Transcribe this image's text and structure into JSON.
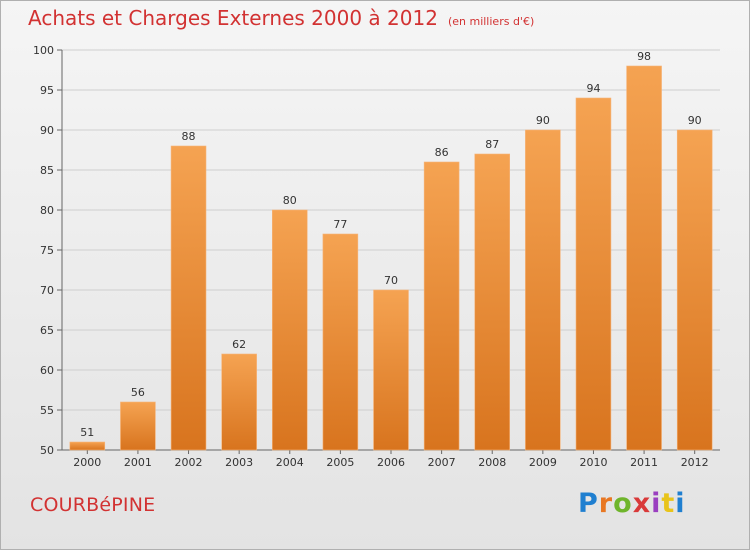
{
  "title": "Achats et Charges Externes 2000 à 2012",
  "subtitle": "(en milliers d'€)",
  "commune": "COURBéPINE",
  "logo": {
    "text": "Proxiti",
    "colors": [
      "#1f7fd0",
      "#e87722",
      "#6fb52c",
      "#d93a3a",
      "#9a3fc0",
      "#e8c41a",
      "#1f7fd0"
    ]
  },
  "colors": {
    "bar_top": "#f5a352",
    "bar_bottom": "#d8741e",
    "title": "#d23232",
    "grid": "#cfcfcf"
  },
  "chart_data": {
    "type": "bar",
    "categories": [
      "2000",
      "2001",
      "2002",
      "2003",
      "2004",
      "2005",
      "2006",
      "2007",
      "2008",
      "2009",
      "2010",
      "2011",
      "2012"
    ],
    "values": [
      51,
      56,
      88,
      62,
      80,
      77,
      70,
      86,
      87,
      90,
      94,
      98,
      90
    ],
    "title": "Achats et Charges Externes 2000 à 2012",
    "ylim": [
      50,
      100
    ],
    "yticks": [
      50,
      55,
      60,
      65,
      70,
      75,
      80,
      85,
      90,
      95,
      100
    ],
    "grid": true
  }
}
